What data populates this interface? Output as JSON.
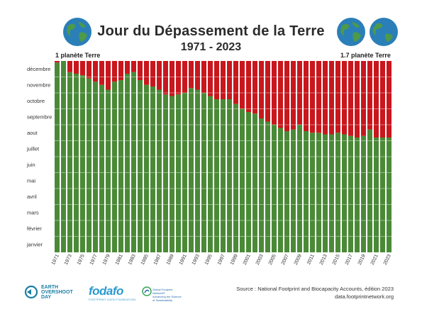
{
  "header": {
    "title": "Jour du Dépassement de la Terre",
    "subtitle": "1971 - 2023",
    "left_label": "1 planète Terre",
    "right_label": "1.7 planète Terre"
  },
  "colors": {
    "green": "#4a8a37",
    "red": "#c8171d",
    "globe_ocean": "#2a7fb8",
    "globe_land": "#4c9a4a"
  },
  "icons": [
    "globe-icon",
    "earth-overshoot-day-logo",
    "fodafo-logo",
    "global-footprint-network-logo"
  ],
  "chart_data": {
    "type": "bar",
    "title": "Jour du Dépassement de la Terre",
    "subtitle": "1971 - 2023",
    "stacked": true,
    "y_unit": "months elapsed in year at overshoot date (0 = 1 January, 12 = 31 December)",
    "ylim": [
      0,
      12
    ],
    "y_ticks": [
      "janvier",
      "février",
      "mars",
      "avril",
      "mai",
      "juin",
      "juillet",
      "aout",
      "septembre",
      "octobre",
      "novembre",
      "décembre"
    ],
    "x_tick_labels": [
      "1971",
      "1973",
      "1975",
      "1977",
      "1979",
      "1981",
      "1983",
      "1985",
      "1987",
      "1989",
      "1991",
      "1993",
      "1995",
      "1997",
      "1999",
      "2001",
      "2003",
      "2005",
      "2007",
      "2009",
      "2011",
      "2013",
      "2015",
      "2017",
      "2019",
      "2021",
      "2023"
    ],
    "categories": [
      "1971",
      "1972",
      "1973",
      "1974",
      "1975",
      "1976",
      "1977",
      "1978",
      "1979",
      "1980",
      "1981",
      "1982",
      "1983",
      "1984",
      "1985",
      "1986",
      "1987",
      "1988",
      "1989",
      "1990",
      "1991",
      "1992",
      "1993",
      "1994",
      "1995",
      "1996",
      "1997",
      "1998",
      "1999",
      "2000",
      "2001",
      "2002",
      "2003",
      "2004",
      "2005",
      "2006",
      "2007",
      "2008",
      "2009",
      "2010",
      "2011",
      "2012",
      "2013",
      "2014",
      "2015",
      "2016",
      "2017",
      "2018",
      "2019",
      "2020",
      "2021",
      "2022",
      "2023"
    ],
    "series": [
      {
        "color": "#4a8a37",
        "values": [
          11.9,
          12.0,
          11.3,
          11.2,
          11.1,
          10.9,
          10.7,
          10.5,
          10.2,
          10.7,
          10.8,
          11.2,
          11.3,
          10.8,
          10.5,
          10.4,
          10.2,
          9.9,
          9.8,
          9.9,
          10.0,
          10.3,
          10.2,
          10.0,
          9.8,
          9.6,
          9.6,
          9.6,
          9.3,
          9.0,
          8.8,
          8.7,
          8.4,
          8.2,
          8.0,
          7.8,
          7.6,
          7.7,
          8.0,
          7.6,
          7.5,
          7.5,
          7.4,
          7.4,
          7.5,
          7.4,
          7.3,
          7.2,
          7.3,
          7.7,
          7.2,
          7.2,
          7.2
        ]
      },
      {
        "color": "#c8171d",
        "values": [
          0.1,
          0.0,
          0.7,
          0.8,
          0.9,
          1.1,
          1.3,
          1.5,
          1.8,
          1.3,
          1.2,
          0.8,
          0.7,
          1.2,
          1.5,
          1.6,
          1.8,
          2.1,
          2.2,
          2.1,
          2.0,
          1.7,
          1.8,
          2.0,
          2.2,
          2.4,
          2.4,
          2.4,
          2.7,
          3.0,
          3.2,
          3.3,
          3.6,
          3.8,
          4.0,
          4.2,
          4.4,
          4.3,
          4.0,
          4.4,
          4.5,
          4.5,
          4.6,
          4.6,
          4.5,
          4.6,
          4.7,
          4.8,
          4.7,
          4.3,
          4.8,
          4.8,
          4.8
        ]
      }
    ]
  },
  "footer": {
    "earth_overshoot_lines": [
      "EARTH",
      "OVERSHOOT",
      "DAY"
    ],
    "fodafo": "fodafo",
    "fodafo_sub": "FOOTPRINT DATA FOUNDATION",
    "gfn_line1": "Global Footprint Network®",
    "gfn_line2": "Advancing the Science of Sustainability",
    "source_line1": "Source : National Footprint and Biocapacity Accounts, édition 2023",
    "source_line2": "data.footprintnetwork.org"
  }
}
